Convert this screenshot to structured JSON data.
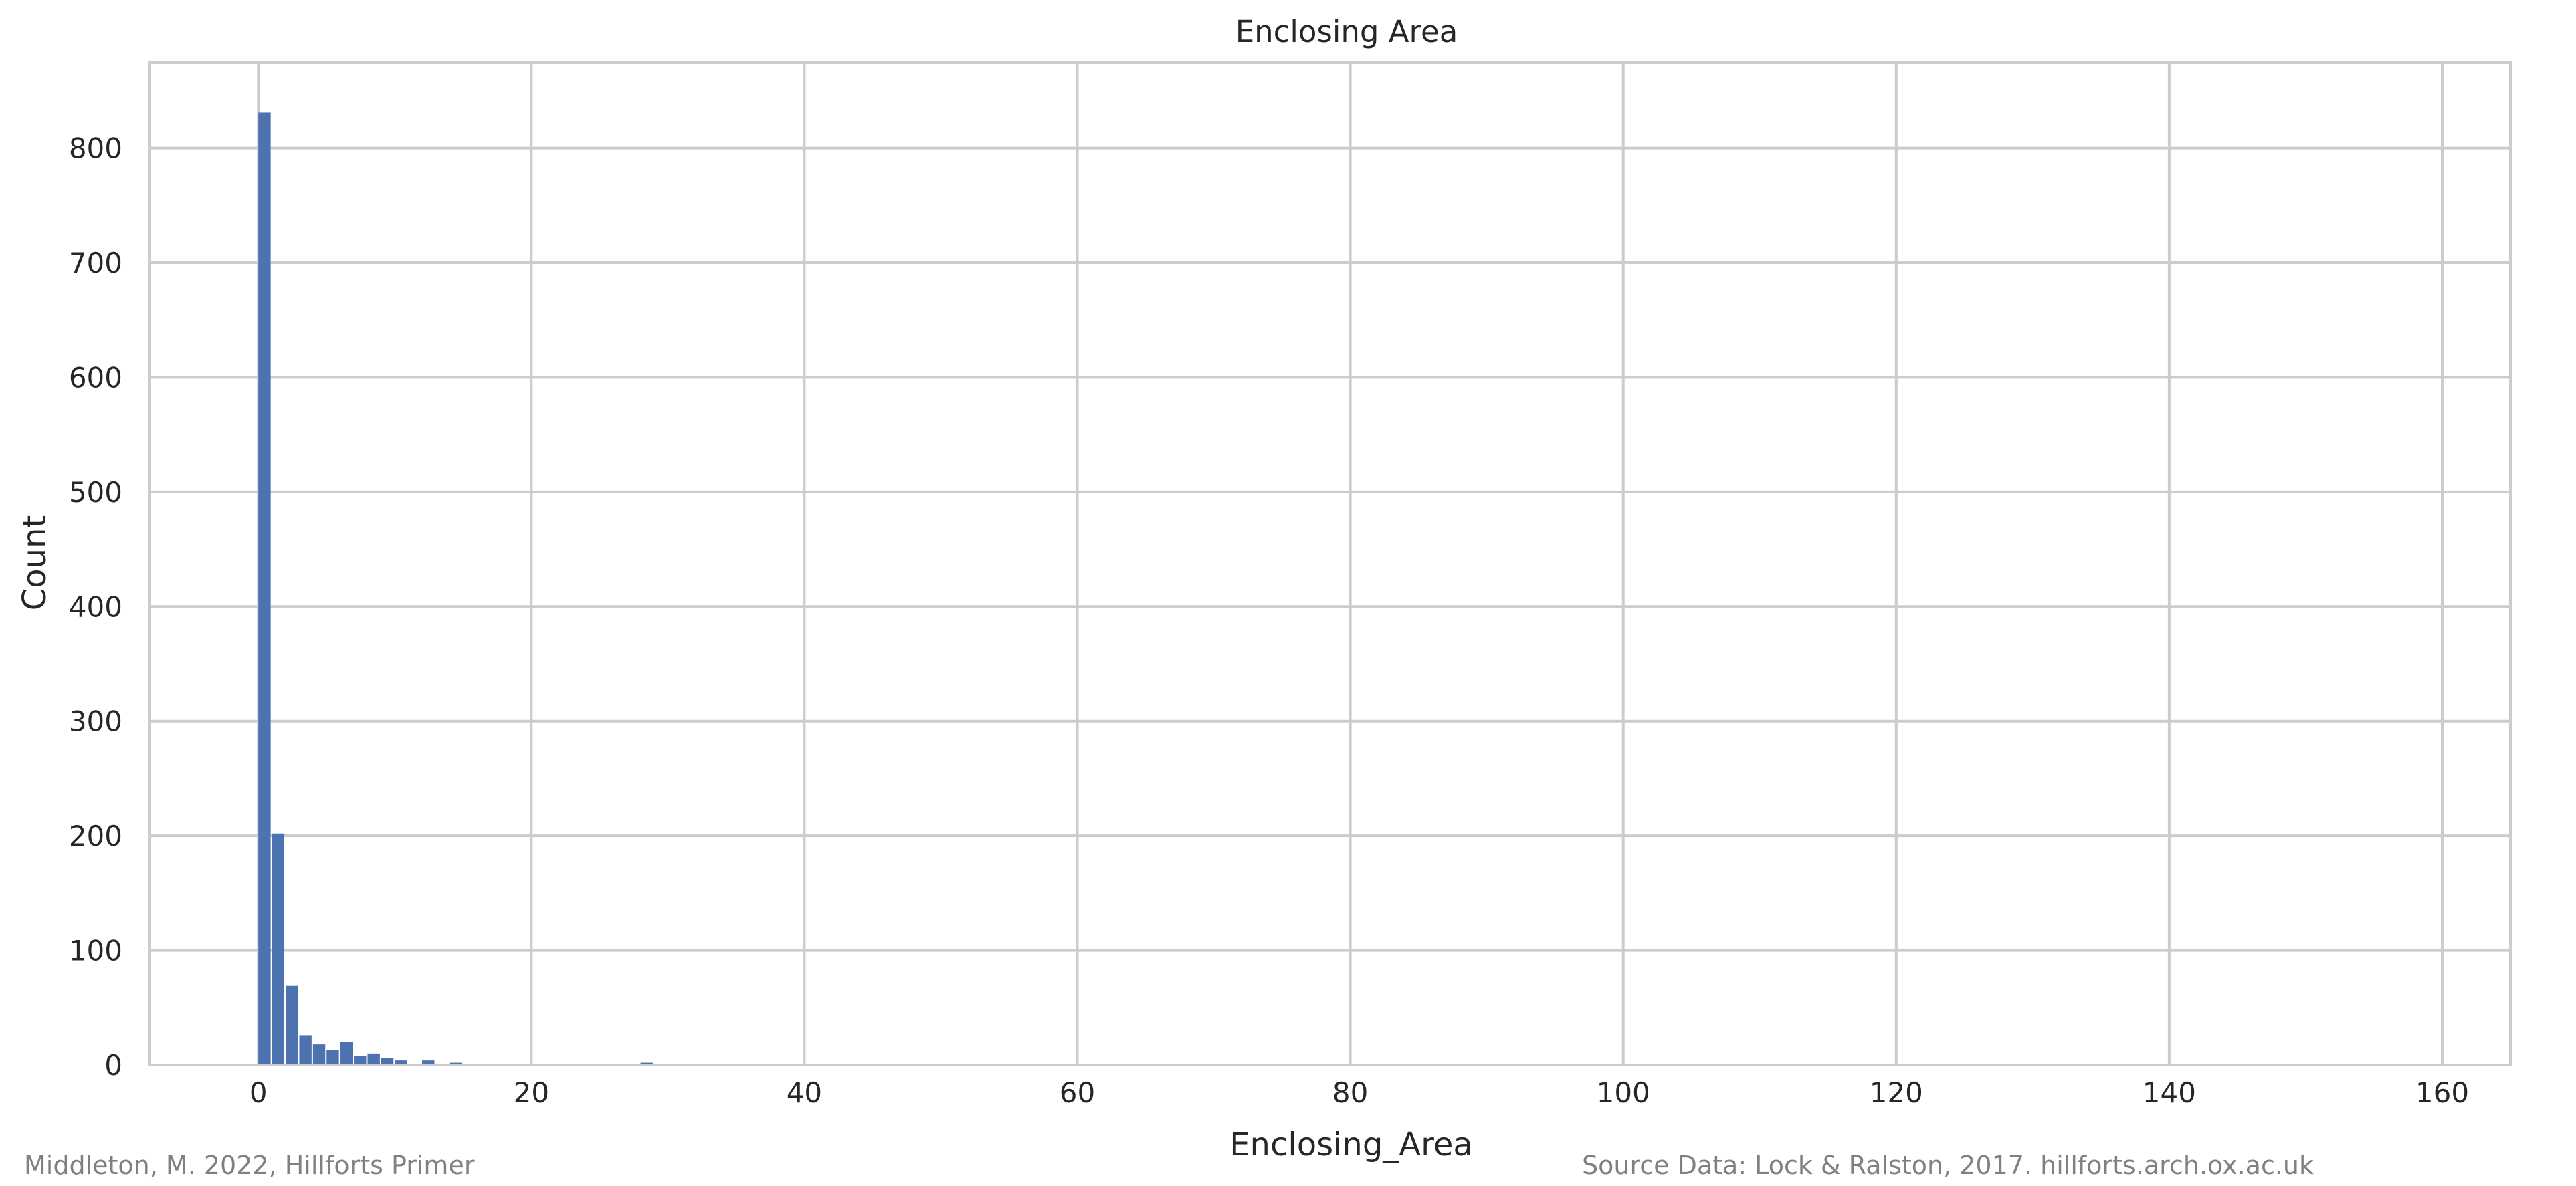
{
  "footer": {
    "left_credit": "Middleton, M. 2022, Hillforts Primer",
    "right_credit": "Source Data: Lock & Ralston, 2017. hillforts.arch.ox.ac.uk"
  },
  "colors": {
    "bar": "#4c72b0",
    "grid": "#cccccc",
    "text": "#262626",
    "credit": "#808080"
  },
  "chart_data": {
    "type": "bar",
    "title": "Enclosing Area",
    "xlabel": "Enclosing_Area",
    "ylabel": "Count",
    "xlim": [
      -8,
      165
    ],
    "ylim": [
      0,
      875
    ],
    "x_ticks": [
      0,
      20,
      40,
      60,
      80,
      100,
      120,
      140,
      160
    ],
    "y_ticks": [
      0,
      100,
      200,
      300,
      400,
      500,
      600,
      700,
      800
    ],
    "grid": true,
    "bin_width": 1,
    "bins": [
      {
        "x": 0,
        "count": 831
      },
      {
        "x": 1,
        "count": 202
      },
      {
        "x": 2,
        "count": 69
      },
      {
        "x": 3,
        "count": 26
      },
      {
        "x": 4,
        "count": 18
      },
      {
        "x": 5,
        "count": 13
      },
      {
        "x": 6,
        "count": 20
      },
      {
        "x": 7,
        "count": 8
      },
      {
        "x": 8,
        "count": 10
      },
      {
        "x": 9,
        "count": 6
      },
      {
        "x": 10,
        "count": 4
      },
      {
        "x": 11,
        "count": 1
      },
      {
        "x": 12,
        "count": 4
      },
      {
        "x": 13,
        "count": 1
      },
      {
        "x": 14,
        "count": 2
      },
      {
        "x": 15,
        "count": 1
      },
      {
        "x": 16,
        "count": 1
      },
      {
        "x": 18,
        "count": 1
      },
      {
        "x": 21,
        "count": 1
      },
      {
        "x": 28,
        "count": 2
      },
      {
        "x": 31,
        "count": 1
      }
    ]
  }
}
